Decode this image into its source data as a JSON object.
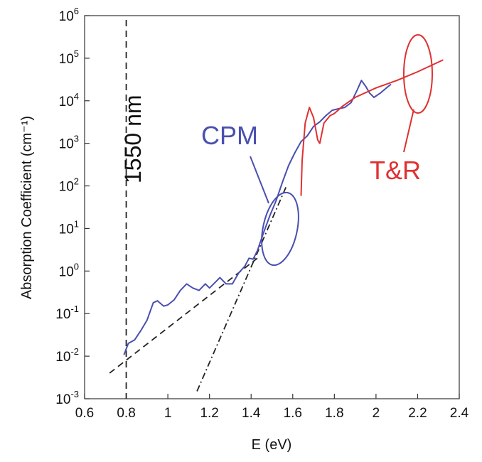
{
  "chart_data": {
    "type": "line",
    "xlabel": "E (eV)",
    "ylabel": "Absorption Coefficient (cm⁻¹)",
    "xlim": [
      0.6,
      2.4
    ],
    "ylim": [
      0.001,
      1000000
    ],
    "yscale": "log",
    "grid": false,
    "x_ticks": [
      0.6,
      0.8,
      1,
      1.2,
      1.4,
      1.6,
      1.8,
      2,
      2.2,
      2.4
    ],
    "x_tick_labels": [
      "0.6",
      "0.8",
      "1",
      "1.2",
      "1.4",
      "1.6",
      "1.8",
      "2",
      "2.2",
      "2.4"
    ],
    "y_ticks": [
      {
        "value": 0.001,
        "base": "10",
        "exp": "-3"
      },
      {
        "value": 0.01,
        "base": "10",
        "exp": "-2"
      },
      {
        "value": 0.1,
        "base": "10",
        "exp": "-1"
      },
      {
        "value": 1,
        "base": "10",
        "exp": "0"
      },
      {
        "value": 10,
        "base": "10",
        "exp": "1"
      },
      {
        "value": 100,
        "base": "10",
        "exp": "2"
      },
      {
        "value": 1000,
        "base": "10",
        "exp": "3"
      },
      {
        "value": 10000,
        "base": "10",
        "exp": "4"
      },
      {
        "value": 100000,
        "base": "10",
        "exp": "5"
      },
      {
        "value": 1000000,
        "base": "10",
        "exp": "6"
      }
    ],
    "series": [
      {
        "name": "CPM",
        "color": "#4a4fb0",
        "style": "solid",
        "points": [
          [
            0.79,
            0.011
          ],
          [
            0.81,
            0.02
          ],
          [
            0.84,
            0.024
          ],
          [
            0.87,
            0.04
          ],
          [
            0.9,
            0.07
          ],
          [
            0.93,
            0.18
          ],
          [
            0.95,
            0.2
          ],
          [
            0.98,
            0.15
          ],
          [
            1.0,
            0.16
          ],
          [
            1.03,
            0.21
          ],
          [
            1.06,
            0.35
          ],
          [
            1.09,
            0.5
          ],
          [
            1.12,
            0.4
          ],
          [
            1.15,
            0.35
          ],
          [
            1.18,
            0.5
          ],
          [
            1.2,
            0.4
          ],
          [
            1.22,
            0.5
          ],
          [
            1.25,
            0.7
          ],
          [
            1.28,
            0.5
          ],
          [
            1.31,
            0.5
          ],
          [
            1.34,
            0.9
          ],
          [
            1.37,
            1.3
          ],
          [
            1.39,
            2.0
          ],
          [
            1.41,
            1.9
          ],
          [
            1.43,
            3
          ],
          [
            1.46,
            8
          ],
          [
            1.49,
            20
          ],
          [
            1.52,
            45
          ],
          [
            1.55,
            120
          ],
          [
            1.58,
            300
          ],
          [
            1.61,
            600
          ],
          [
            1.64,
            1100
          ],
          [
            1.67,
            1500
          ],
          [
            1.7,
            2500
          ],
          [
            1.73,
            3200
          ],
          [
            1.76,
            4500
          ],
          [
            1.79,
            6000
          ],
          [
            1.82,
            6500
          ],
          [
            1.85,
            7000
          ],
          [
            1.88,
            9000
          ],
          [
            1.91,
            18000
          ],
          [
            1.93,
            30000
          ],
          [
            1.95,
            22000
          ],
          [
            1.97,
            15000
          ],
          [
            1.99,
            12000
          ],
          [
            2.02,
            15000
          ],
          [
            2.05,
            20000
          ],
          [
            2.07,
            24000
          ]
        ]
      },
      {
        "name": "T&R",
        "color": "#e03030",
        "style": "solid",
        "points": [
          [
            1.64,
            60
          ],
          [
            1.645,
            400
          ],
          [
            1.66,
            3000
          ],
          [
            1.68,
            7000
          ],
          [
            1.7,
            4000
          ],
          [
            1.72,
            1200
          ],
          [
            1.73,
            1000
          ],
          [
            1.75,
            3000
          ],
          [
            1.78,
            4500
          ],
          [
            1.8,
            5000
          ],
          [
            1.84,
            7500
          ],
          [
            1.9,
            12000
          ],
          [
            2.0,
            20000
          ],
          [
            2.1,
            30000
          ],
          [
            2.2,
            48000
          ],
          [
            2.32,
            90000
          ]
        ]
      }
    ],
    "reference_lines": [
      {
        "type": "vertical",
        "x": 0.8,
        "style": "dashed",
        "label": "1550 nm"
      },
      {
        "type": "fit",
        "style": "dashed",
        "points": [
          [
            0.72,
            0.004
          ],
          [
            1.43,
            2.0
          ]
        ]
      },
      {
        "type": "fit",
        "style": "dash-dot",
        "points": [
          [
            1.14,
            0.0015
          ],
          [
            1.57,
            100
          ]
        ]
      }
    ],
    "annotations": [
      {
        "text": "CPM",
        "color": "#4a4fb0"
      },
      {
        "text": "T&R",
        "color": "#e03030"
      },
      {
        "text": "1550 nm",
        "color": "#111111"
      }
    ]
  }
}
